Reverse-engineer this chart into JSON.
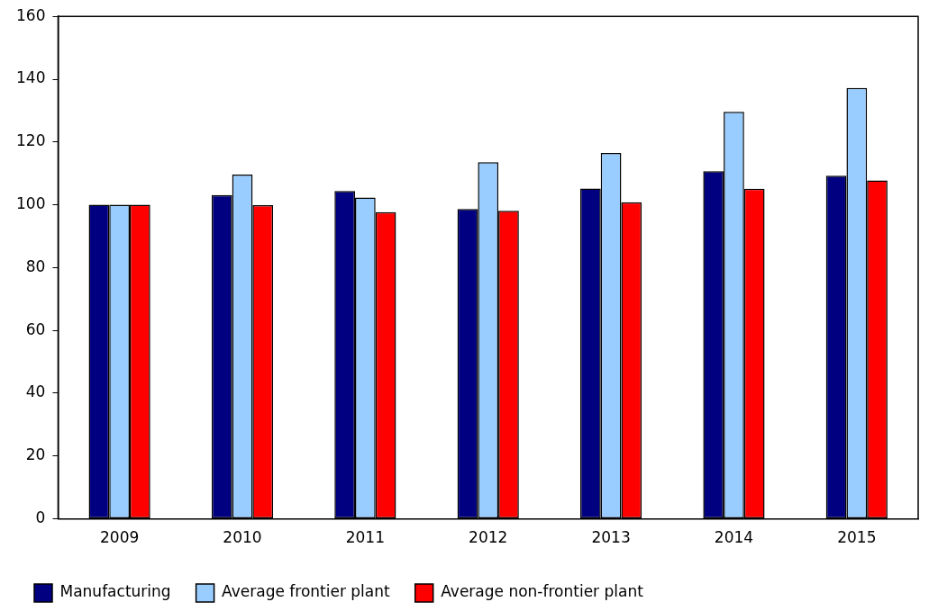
{
  "chart_data": {
    "type": "bar",
    "categories": [
      "2009",
      "2010",
      "2011",
      "2012",
      "2013",
      "2014",
      "2015"
    ],
    "series": [
      {
        "name": "Manufacturing",
        "color": "#000080",
        "values": [
          100,
          103.1,
          104.4,
          98.7,
          105.2,
          110.7,
          109.3
        ]
      },
      {
        "name": "Average frontier plant",
        "color": "#99ccff",
        "values": [
          100,
          109.6,
          102.3,
          113.6,
          116.5,
          129.6,
          137.2
        ]
      },
      {
        "name": "Average non-frontier plant",
        "color": "#ff0000",
        "values": [
          100,
          99.9,
          97.7,
          98.1,
          100.8,
          105.1,
          107.8
        ]
      }
    ],
    "ylim": [
      0,
      160
    ],
    "yticks": [
      0,
      20,
      40,
      60,
      80,
      100,
      120,
      140,
      160
    ],
    "grid": false,
    "legend": "bottom"
  }
}
